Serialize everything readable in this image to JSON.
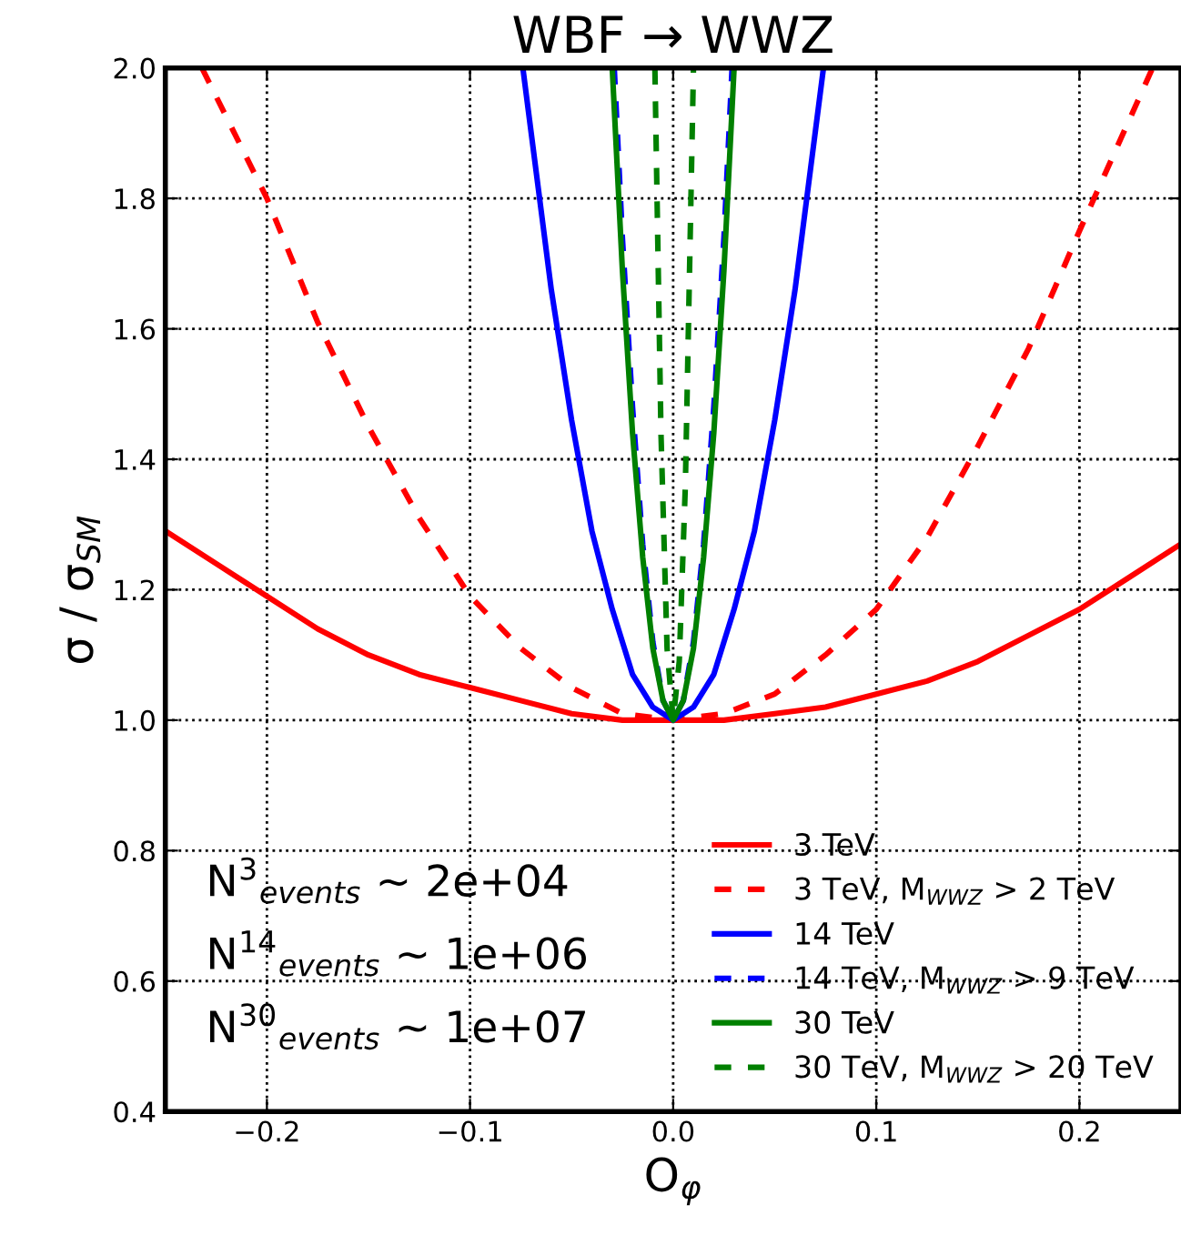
{
  "chart_data": {
    "type": "line",
    "title": "WBF → WWZ",
    "xlabel": "O$_{φ}$",
    "ylabel": "σ / σ$_{SM}$",
    "xlim": [
      -0.25,
      0.25
    ],
    "ylim": [
      0.4,
      2.0
    ],
    "xticks": [
      {
        "value": -0.2,
        "label": "−0.2"
      },
      {
        "value": -0.1,
        "label": "−0.1"
      },
      {
        "value": 0,
        "label": "0.0"
      },
      0.1,
      0.2
    ],
    "yticks": [
      0.4,
      0.6,
      0.8,
      {
        "value": 1,
        "label": "1.0"
      },
      1.2,
      1.4,
      1.6,
      1.8,
      {
        "value": 2,
        "label": "2.0"
      }
    ],
    "grid": true,
    "legend": "bottom right",
    "series": [
      {
        "name": "3 TeV",
        "color": "#ff0000",
        "line_style": "solid",
        "x": [
          -0.25,
          -0.225,
          -0.2,
          -0.175,
          -0.15,
          -0.125,
          -0.1,
          -0.075,
          -0.05,
          -0.025,
          0,
          0.025,
          0.05,
          0.075,
          0.1,
          0.125,
          0.15,
          0.175,
          0.2,
          0.225,
          0.25
        ],
        "values": [
          1.29,
          1.24,
          1.19,
          1.14,
          1.1,
          1.07,
          1.05,
          1.03,
          1.01,
          1.0,
          1.0,
          1.0,
          1.01,
          1.02,
          1.04,
          1.06,
          1.09,
          1.13,
          1.17,
          1.22,
          1.27
        ]
      },
      {
        "name": "3 TeV, M$_{WWZ}$ > 2 TeV",
        "color": "#ff0000",
        "line_style": "dashed",
        "x": [
          -0.232,
          -0.2,
          -0.175,
          -0.15,
          -0.125,
          -0.1,
          -0.075,
          -0.05,
          -0.025,
          0,
          0.025,
          0.05,
          0.075,
          0.1,
          0.125,
          0.15,
          0.175,
          0.2,
          0.236
        ],
        "values": [
          2.0,
          1.8,
          1.61,
          1.45,
          1.31,
          1.19,
          1.11,
          1.05,
          1.01,
          1.0,
          1.01,
          1.04,
          1.1,
          1.17,
          1.28,
          1.42,
          1.57,
          1.75,
          2.0
        ]
      },
      {
        "name": "14 TeV",
        "color": "#0000ff",
        "line_style": "solid",
        "x": [
          -0.074,
          -0.06,
          -0.05,
          -0.04,
          -0.03,
          -0.02,
          -0.01,
          0,
          0.01,
          0.02,
          0.03,
          0.04,
          0.05,
          0.06,
          0.074
        ],
        "values": [
          2.0,
          1.66,
          1.46,
          1.29,
          1.17,
          1.07,
          1.02,
          1.0,
          1.02,
          1.07,
          1.17,
          1.29,
          1.46,
          1.66,
          2.0
        ]
      },
      {
        "name": "14 TeV, M$_{WWZ}$ > 9 TeV",
        "color": "#0000ff",
        "line_style": "dashed",
        "x": [
          -0.029,
          -0.025,
          -0.02,
          -0.015,
          -0.01,
          -0.005,
          0,
          0.005,
          0.01,
          0.015,
          0.02,
          0.025,
          0.029
        ],
        "values": [
          2.0,
          1.74,
          1.48,
          1.27,
          1.12,
          1.03,
          1.0,
          1.03,
          1.12,
          1.27,
          1.48,
          1.74,
          2.0
        ]
      },
      {
        "name": "30 TeV",
        "color": "#008000",
        "line_style": "solid",
        "x": [
          -0.03,
          -0.025,
          -0.02,
          -0.015,
          -0.01,
          -0.005,
          0,
          0.005,
          0.01,
          0.015,
          0.02,
          0.025,
          0.03
        ],
        "values": [
          2.0,
          1.69,
          1.44,
          1.25,
          1.11,
          1.03,
          1.0,
          1.03,
          1.11,
          1.25,
          1.44,
          1.69,
          2.0
        ]
      },
      {
        "name": "30 TeV, M$_{WWZ}$ > 20 TeV",
        "color": "#008000",
        "line_style": "dashed",
        "x": [
          -0.009,
          -0.006,
          -0.003,
          0,
          0.003,
          0.006,
          0.01
        ],
        "values": [
          2.0,
          1.44,
          1.11,
          1.0,
          1.09,
          1.36,
          2.0
        ]
      }
    ],
    "annotations": [
      "N$^{3}$$_{events}$ ∼ 2e+04",
      "N$^{14}$$_{events}$ ∼ 1e+06",
      "N$^{30}$$_{events}$ ∼ 1e+07"
    ]
  }
}
